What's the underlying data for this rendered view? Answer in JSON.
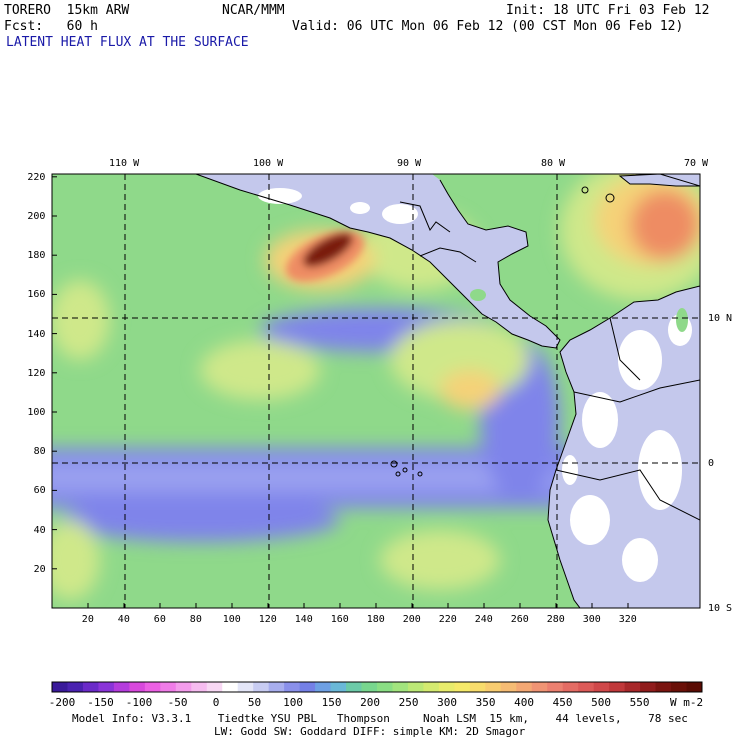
{
  "header": {
    "model": "TORERO  15km ARW",
    "agency": "NCAR/MMM",
    "init": "Init: 18 UTC Fri 03 Feb 12",
    "fcst": "Fcst:   60 h",
    "valid": "Valid: 06 UTC Mon 06 Feb 12 (00 CST Mon 06 Feb 12)",
    "field": "LATENT HEAT FLUX AT THE SURFACE"
  },
  "map": {
    "x_ticks": [
      "20",
      "40",
      "60",
      "80",
      "100",
      "120",
      "140",
      "160",
      "180",
      "200",
      "220",
      "240",
      "260",
      "280",
      "300",
      "320"
    ],
    "y_ticks": [
      "220",
      "200",
      "180",
      "160",
      "140",
      "120",
      "100",
      "80",
      "60",
      "40",
      "20"
    ],
    "lon_labels": [
      "110 W",
      "100 W",
      "90 W",
      "80 W",
      "70 W"
    ],
    "lat_labels": [
      "10 N",
      "0",
      "10 S"
    ],
    "colors": {
      "ocean_base": "#8fd98a",
      "land": "#c4c8ec",
      "low_flux": "#7f84ea",
      "very_low": "#9aa0f0",
      "moderate": "#cfe88a",
      "high": "#f5d278",
      "very_high": "#ee8c64",
      "extreme": "#7a1e08",
      "coast": "#000000"
    }
  },
  "colorbar": {
    "labels": [
      "-200",
      "-150",
      "-100",
      "-50",
      "0",
      "50",
      "100",
      "150",
      "200",
      "250",
      "300",
      "350",
      "400",
      "450",
      "500",
      "550"
    ],
    "units": "W m-2",
    "colors": [
      "#3a1a9a",
      "#4a22b0",
      "#6a2ac8",
      "#8a34d8",
      "#b43cdc",
      "#d848dc",
      "#ec60e4",
      "#f07ce8",
      "#f49cec",
      "#f6bcf0",
      "#f8d8f4",
      "#ffffff",
      "#e4e6f8",
      "#c8ccf2",
      "#a8aeee",
      "#8a90ea",
      "#7480e6",
      "#6ea0e4",
      "#6ab8d8",
      "#6ccaa8",
      "#78d68e",
      "#8ade84",
      "#a2e47e",
      "#bce876",
      "#d4ea70",
      "#e8ec6c",
      "#f6ea6a",
      "#f8dc6c",
      "#f8cc70",
      "#f6bc74",
      "#f4a874",
      "#f09474",
      "#ec8070",
      "#e46c64",
      "#dc5a58",
      "#d0484a",
      "#c0383a",
      "#a8282a",
      "#901c1c",
      "#7a1410",
      "#6a1008",
      "#5a0c04"
    ]
  },
  "footer": {
    "line1": "Model Info: V3.3.1    Tiedtke YSU PBL   Thompson     Noah LSM  15 km,    44 levels,    78 sec",
    "line2": "LW: Godd SW: Goddard DIFF: simple KM: 2D Smagor"
  }
}
